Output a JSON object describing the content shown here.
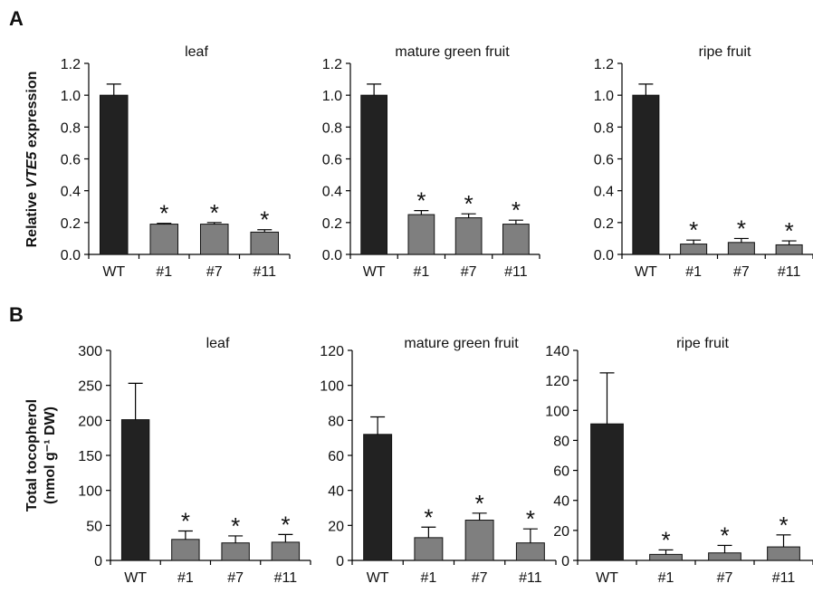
{
  "panel_labels": [
    "A",
    "B"
  ],
  "colors": {
    "wt_bar": "#222222",
    "mutant_bar": "#7f7f7f",
    "error_bar": "#000000",
    "axis": "#000000"
  },
  "chart_data": [
    {
      "type": "bar",
      "panel": "A",
      "title": "leaf",
      "ylabel": "Relative VTE5 expression",
      "categories": [
        "WT",
        "#1",
        "#7",
        "#11"
      ],
      "values": [
        1.0,
        0.19,
        0.19,
        0.14
      ],
      "errors": [
        0.07,
        0.005,
        0.01,
        0.015
      ],
      "significance": [
        "",
        "*",
        "*",
        "*"
      ],
      "ylim": [
        0,
        1.2
      ],
      "yticks": [
        "0.0",
        "0.2",
        "0.4",
        "0.6",
        "0.8",
        "1.0",
        "1.2"
      ]
    },
    {
      "type": "bar",
      "panel": "A",
      "title": "mature green fruit",
      "categories": [
        "WT",
        "#1",
        "#7",
        "#11"
      ],
      "values": [
        1.0,
        0.25,
        0.23,
        0.19
      ],
      "errors": [
        0.07,
        0.025,
        0.025,
        0.025
      ],
      "significance": [
        "",
        "*",
        "*",
        "*"
      ],
      "ylim": [
        0,
        1.2
      ],
      "yticks": [
        "0.0",
        "0.2",
        "0.4",
        "0.6",
        "0.8",
        "1.0",
        "1.2"
      ]
    },
    {
      "type": "bar",
      "panel": "A",
      "title": "ripe fruit",
      "categories": [
        "WT",
        "#1",
        "#7",
        "#11"
      ],
      "values": [
        1.0,
        0.065,
        0.075,
        0.06
      ],
      "errors": [
        0.07,
        0.025,
        0.025,
        0.025
      ],
      "significance": [
        "",
        "*",
        "*",
        "*"
      ],
      "ylim": [
        0,
        1.2
      ],
      "yticks": [
        "0.0",
        "0.2",
        "0.4",
        "0.6",
        "0.8",
        "1.0",
        "1.2"
      ]
    },
    {
      "type": "bar",
      "panel": "B",
      "title": "leaf",
      "ylabel_lines": [
        "Total tocopherol",
        "(nmol g⁻¹ DW)"
      ],
      "categories": [
        "WT",
        "#1",
        "#7",
        "#11"
      ],
      "values": [
        201,
        30,
        25,
        26
      ],
      "errors": [
        52,
        12,
        10,
        11
      ],
      "significance": [
        "",
        "*",
        "*",
        "*"
      ],
      "ylim": [
        0,
        300
      ],
      "yticks": [
        "0",
        "50",
        "100",
        "150",
        "200",
        "250",
        "300"
      ]
    },
    {
      "type": "bar",
      "panel": "B",
      "title": "mature green fruit",
      "categories": [
        "WT",
        "#1",
        "#7",
        "#11"
      ],
      "values": [
        72,
        13,
        23,
        10
      ],
      "errors": [
        10,
        6,
        4,
        8
      ],
      "significance": [
        "",
        "*",
        "*",
        "*"
      ],
      "ylim": [
        0,
        120
      ],
      "yticks": [
        "0",
        "20",
        "40",
        "60",
        "80",
        "100",
        "120"
      ]
    },
    {
      "type": "bar",
      "panel": "B",
      "title": "ripe fruit",
      "categories": [
        "WT",
        "#1",
        "#7",
        "#11"
      ],
      "values": [
        91,
        4,
        5,
        9
      ],
      "errors": [
        34,
        3,
        5,
        8
      ],
      "significance": [
        "",
        "*",
        "*",
        "*"
      ],
      "ylim": [
        0,
        140
      ],
      "yticks": [
        "0",
        "20",
        "40",
        "60",
        "80",
        "100",
        "120",
        "140"
      ]
    }
  ]
}
